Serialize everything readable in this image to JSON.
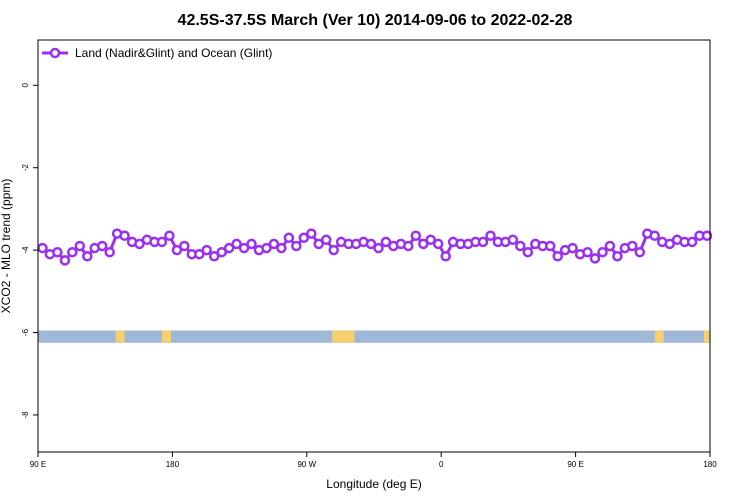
{
  "chart_data": {
    "type": "line",
    "title": "42.5S-37.5S March (Ver 10)   2014-09-06 to 2022-02-28",
    "xlabel": "Longitude (deg E)",
    "ylabel": "XCO2 - MLO trend (ppm)",
    "ylim": [
      -8.9,
      1.1
    ],
    "grid": false,
    "legend_placement": "top-left",
    "x_ticks": [
      {
        "value": 0,
        "label": "90 E"
      },
      {
        "value": 90,
        "label": "180"
      },
      {
        "value": 180,
        "label": "90 W"
      },
      {
        "value": 270,
        "label": "0"
      },
      {
        "value": 360,
        "label": "90 E"
      },
      {
        "value": 450,
        "label": "180"
      }
    ],
    "xlim": [
      0,
      450
    ],
    "y_ticks": [
      {
        "value": 0,
        "label": "0"
      },
      {
        "value": -2,
        "label": "-2"
      },
      {
        "value": -4,
        "label": "-4"
      },
      {
        "value": -6,
        "label": "-6"
      },
      {
        "value": -8,
        "label": "-8"
      }
    ],
    "series": [
      {
        "name": "Land (Nadir&Glint) and Ocean (Glint)",
        "color": "#9b30f0",
        "marker": "open-circle",
        "x": [
          3,
          8,
          13,
          18,
          23,
          28,
          33,
          38,
          43,
          48,
          53,
          58,
          63,
          68,
          73,
          78,
          83,
          88,
          93,
          98,
          103,
          108,
          113,
          118,
          123,
          128,
          133,
          138,
          143,
          148,
          153,
          158,
          163,
          168,
          173,
          178,
          183,
          188,
          193,
          198,
          203,
          208,
          213,
          218,
          223,
          228,
          233,
          238,
          243,
          248,
          253,
          258,
          263,
          268,
          273,
          278,
          283,
          288,
          293,
          298,
          303,
          308,
          313,
          318,
          323,
          328,
          333,
          338,
          343,
          348,
          353,
          358,
          363,
          368,
          373,
          378,
          383,
          388,
          393,
          398,
          403,
          408,
          413,
          418,
          423,
          428,
          433,
          438,
          443,
          448
        ],
        "y": [
          -3.95,
          -4.1,
          -4.05,
          -4.25,
          -4.05,
          -3.9,
          -4.15,
          -3.95,
          -3.9,
          -4.05,
          -3.6,
          -3.65,
          -3.8,
          -3.85,
          -3.75,
          -3.8,
          -3.8,
          -3.65,
          -4.0,
          -3.9,
          -4.1,
          -4.1,
          -4.0,
          -4.15,
          -4.05,
          -3.95,
          -3.85,
          -3.95,
          -3.85,
          -4.0,
          -3.95,
          -3.85,
          -3.95,
          -3.7,
          -3.9,
          -3.7,
          -3.6,
          -3.85,
          -3.75,
          -4.0,
          -3.8,
          -3.85,
          -3.85,
          -3.8,
          -3.85,
          -3.95,
          -3.8,
          -3.9,
          -3.85,
          -3.9,
          -3.65,
          -3.85,
          -3.75,
          -3.85,
          -4.15,
          -3.8,
          -3.85,
          -3.85,
          -3.8,
          -3.8,
          -3.65,
          -3.8,
          -3.8,
          -3.75,
          -3.9,
          -4.05,
          -3.85,
          -3.9,
          -3.9,
          -4.15,
          -4.0,
          -3.95,
          -4.1,
          -4.05,
          -4.2,
          -4.05,
          -3.9,
          -4.15,
          -3.95,
          -3.9,
          -4.05,
          -3.6,
          -3.65,
          -3.8,
          -3.85,
          -3.75,
          -3.8,
          -3.8,
          -3.65,
          -3.65
        ]
      }
    ],
    "surface_band": {
      "y_top": -5.95,
      "y_bottom": -6.25,
      "ocean_color": "#a0b8d8",
      "land_color": "#f5d070",
      "land_spans": [
        [
          52,
          58
        ],
        [
          83,
          89
        ],
        [
          197,
          212
        ],
        [
          413,
          419
        ],
        [
          446,
          450
        ]
      ]
    }
  }
}
